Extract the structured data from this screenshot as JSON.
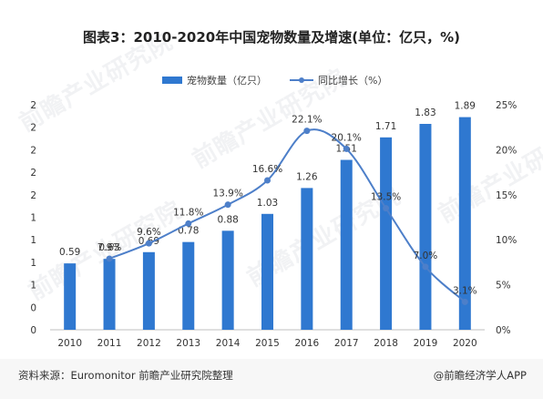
{
  "title": "图表3：2010-2020年中国宠物数量及增速(单位：亿只，%)",
  "source": "资料来源：Euromonitor 前瞻产业研究院整理",
  "credit": "@前瞻经济学人APP",
  "watermark": "前瞻产业研究院",
  "colors": {
    "bar": "#2F78D0",
    "line": "#4D7FC9",
    "text": "#333333",
    "axis": "#bfbfbf"
  },
  "chart_data": {
    "type": "bar+line",
    "categories": [
      "2010",
      "2011",
      "2012",
      "2013",
      "2014",
      "2015",
      "2016",
      "2017",
      "2018",
      "2019",
      "2020"
    ],
    "series": [
      {
        "name": "宠物数量（亿只）",
        "type": "bar",
        "axis": "left",
        "values": [
          0.59,
          0.63,
          0.69,
          0.78,
          0.88,
          1.03,
          1.26,
          1.51,
          1.71,
          1.83,
          1.89
        ],
        "labels": [
          "0.59",
          "0.63",
          "0.69",
          "0.78",
          "0.88",
          "1.03",
          "1.26",
          "1.51",
          "1.71",
          "1.83",
          "1.89"
        ]
      },
      {
        "name": "同比增长（%）",
        "type": "line",
        "axis": "right",
        "values": [
          null,
          7.9,
          9.6,
          11.8,
          13.9,
          16.6,
          22.1,
          20.1,
          13.5,
          7.0,
          3.1
        ],
        "labels": [
          "",
          "7.9%",
          "9.6%",
          "11.8%",
          "13.9%",
          "16.6%",
          "22.1%",
          "20.1%",
          "13.5%",
          "7.0%",
          "3.1%"
        ]
      }
    ],
    "y_left": {
      "ylim": [
        0,
        2.0
      ],
      "ticks": [
        "0",
        "0",
        "1",
        "1",
        "1",
        "1",
        "2",
        "2",
        "2",
        "2",
        "2"
      ]
    },
    "y_right": {
      "ylim": [
        0,
        25
      ],
      "ticks": [
        "0%",
        "5%",
        "10%",
        "15%",
        "20%",
        "25%"
      ]
    },
    "legend_position": "top-center",
    "grid": false
  }
}
